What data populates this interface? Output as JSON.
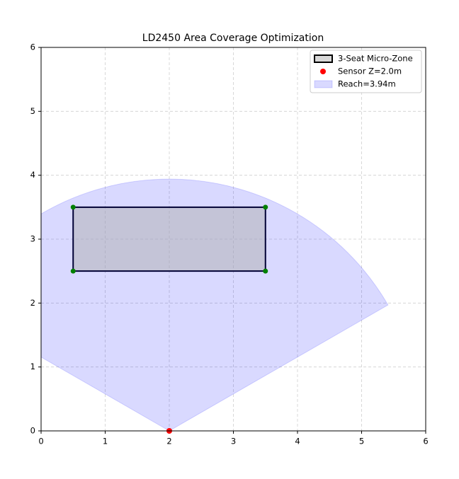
{
  "chart_data": {
    "type": "coverage",
    "title": "LD2450 Area Coverage Optimization",
    "xlim": [
      0,
      6
    ],
    "ylim": [
      0,
      6
    ],
    "xticks": [
      0,
      1,
      2,
      3,
      4,
      5,
      6
    ],
    "yticks": [
      0,
      1,
      2,
      3,
      4,
      5,
      6
    ],
    "grid": true,
    "legend": "upper right",
    "zone": {
      "name": "3-Seat Micro-Zone",
      "x": [
        0.5,
        3.5,
        3.5,
        0.5
      ],
      "y": [
        2.5,
        2.5,
        3.5,
        3.5
      ],
      "fill": "#b0b0b0",
      "edge": "#000033",
      "corner_color": "#008000"
    },
    "sensor": {
      "name": "Sensor Z=2.0m",
      "x": 2,
      "y": 0,
      "color": "#ff0000"
    },
    "reach": {
      "name": "Reach=3.94m",
      "radius": 3.94,
      "start_angle": 30,
      "end_angle": 150,
      "color": "#0000ff"
    }
  }
}
